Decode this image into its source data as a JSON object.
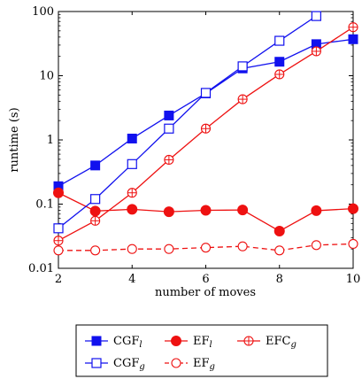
{
  "chart_data": {
    "type": "line",
    "xlabel": "number of moves",
    "ylabel": "runtime (s)",
    "x_ticks": [
      2,
      4,
      6,
      8,
      10
    ],
    "xlim": [
      2,
      10
    ],
    "ylim": [
      0.01,
      100
    ],
    "yscale": "log",
    "y_ticks": [
      0.01,
      0.1,
      1,
      10,
      100
    ],
    "y_tick_labels": [
      "0.01",
      "0.1",
      "1",
      "10",
      "100"
    ],
    "legend_position": "below",
    "series": [
      {
        "name": "CGF",
        "sub": "l",
        "color": "#1111ee",
        "marker": "square-filled",
        "dashed": false,
        "x": [
          2,
          3,
          4,
          5,
          6,
          7,
          8,
          9,
          10
        ],
        "values": [
          0.19,
          0.4,
          1.05,
          2.4,
          5.3,
          13.0,
          16.5,
          31.0,
          37.0
        ]
      },
      {
        "name": "EF",
        "sub": "l",
        "color": "#ee1111",
        "marker": "circle-filled",
        "dashed": false,
        "x": [
          2,
          3,
          4,
          5,
          6,
          7,
          8,
          9,
          10
        ],
        "values": [
          0.15,
          0.078,
          0.083,
          0.076,
          0.08,
          0.081,
          0.038,
          0.079,
          0.085
        ]
      },
      {
        "name": "EFC",
        "sub": "g",
        "color": "#ee1111",
        "marker": "circle-plus",
        "dashed": false,
        "x": [
          2,
          3,
          4,
          5,
          6,
          7,
          8,
          9,
          10
        ],
        "values": [
          0.027,
          0.055,
          0.15,
          0.49,
          1.5,
          4.3,
          10.5,
          24.0,
          57.0
        ]
      },
      {
        "name": "CGF",
        "sub": "g",
        "color": "#1111ee",
        "marker": "square-open",
        "dashed": false,
        "x": [
          2,
          3,
          4,
          5,
          6,
          7,
          8,
          9
        ],
        "values": [
          0.042,
          0.12,
          0.42,
          1.5,
          5.4,
          14.0,
          35.0,
          85.0
        ]
      },
      {
        "name": "EF",
        "sub": "g",
        "color": "#ee1111",
        "marker": "circle-open",
        "dashed": true,
        "x": [
          2,
          3,
          4,
          5,
          6,
          7,
          8,
          9,
          10
        ],
        "values": [
          0.019,
          0.019,
          0.02,
          0.02,
          0.021,
          0.022,
          0.019,
          0.023,
          0.024
        ]
      }
    ]
  }
}
